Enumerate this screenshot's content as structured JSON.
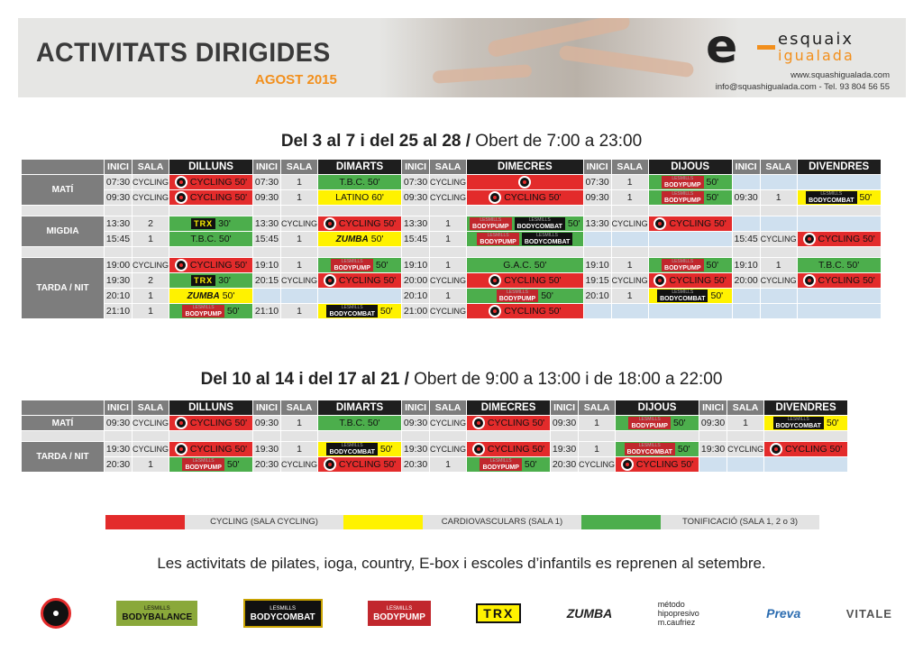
{
  "header": {
    "title": "ACTIVITATS DIRIGIDES",
    "subtitle": "AGOST 2015",
    "brand": "esquaix",
    "brand2": "igualada",
    "web": "www.squashigualada.com",
    "contact": "info@squashigualada.com - Tel. 93 804 56 55"
  },
  "cols": {
    "inici": "INICI",
    "sala": "SALA",
    "days": [
      "DILLUNS",
      "DIMARTS",
      "DIMECRES",
      "DIJOUS",
      "DIVENDRES"
    ]
  },
  "section1": {
    "dates": "Del 3 al 7 i del 25 al 28 /",
    "hours": "Obert de 7:00 a 23:00",
    "periods": {
      "mati": "MATÍ",
      "migdia": "MIGDIA",
      "tarda": "TARDA / NIT"
    },
    "rows": [
      [
        [
          "07:30",
          "CYCLING",
          "CYCLING 50'"
        ],
        [
          "07:30",
          "1",
          "T.B.C. 50'"
        ],
        [
          "07:30",
          "CYCLING",
          ""
        ],
        [
          "07:30",
          "1",
          "50'"
        ],
        [
          "",
          "",
          ""
        ]
      ],
      [
        [
          "09:30",
          "CYCLING",
          "CYCLING 50'"
        ],
        [
          "09:30",
          "1",
          "LATINO 60'"
        ],
        [
          "09:30",
          "CYCLING",
          "CYCLING 50'"
        ],
        [
          "09:30",
          "1",
          "50'"
        ],
        [
          "09:30",
          "1",
          "50'"
        ]
      ],
      [
        [
          "13:30",
          "2",
          "30'"
        ],
        [
          "13:30",
          "CYCLING",
          "CYCLING 50'"
        ],
        [
          "13:30",
          "1",
          "50'"
        ],
        [
          "13:30",
          "CYCLING",
          "CYCLING 50'"
        ],
        [
          "",
          "",
          ""
        ]
      ],
      [
        [
          "15:45",
          "1",
          "T.B.C. 50'"
        ],
        [
          "15:45",
          "1",
          "50'"
        ],
        [
          "15:45",
          "1",
          ""
        ],
        [
          "",
          "",
          ""
        ],
        [
          "15:45",
          "CYCLING",
          "CYCLING 50'"
        ]
      ],
      [
        [
          "19:00",
          "CYCLING",
          "CYCLING 50'"
        ],
        [
          "19:10",
          "1",
          "50'"
        ],
        [
          "19:10",
          "1",
          "G.A.C. 50'"
        ],
        [
          "19:10",
          "1",
          "50'"
        ],
        [
          "19:10",
          "1",
          "T.B.C. 50'"
        ]
      ],
      [
        [
          "19:30",
          "2",
          "30'"
        ],
        [
          "20:15",
          "CYCLING",
          "CYCLING 50'"
        ],
        [
          "20:00",
          "CYCLING",
          "CYCLING 50'"
        ],
        [
          "19:15",
          "CYCLING",
          "CYCLING 50'"
        ],
        [
          "20:00",
          "CYCLING",
          "CYCLING 50'"
        ]
      ],
      [
        [
          "20:10",
          "1",
          "50'"
        ],
        [
          "",
          "",
          ""
        ],
        [
          "20:10",
          "1",
          "50'"
        ],
        [
          "20:10",
          "1",
          "50'"
        ],
        [
          "",
          "",
          ""
        ]
      ],
      [
        [
          "21:10",
          "1",
          "50'"
        ],
        [
          "21:10",
          "1",
          "50'"
        ],
        [
          "21:00",
          "CYCLING",
          "CYCLING 50'"
        ],
        [
          "",
          "",
          ""
        ],
        [
          "",
          "",
          ""
        ]
      ]
    ]
  },
  "section2": {
    "dates": "Del 10 al 14 i del 17 al 21 /",
    "hours": "Obert de 9:00 a 13:00 i de 18:00 a 22:00",
    "periods": {
      "mati": "MATÍ",
      "tarda": "TARDA / NIT"
    },
    "rows": [
      [
        [
          "09:30",
          "CYCLING",
          "CYCLING 50'"
        ],
        [
          "09:30",
          "1",
          "T.B.C. 50'"
        ],
        [
          "09:30",
          "CYCLING",
          "CYCLING 50'"
        ],
        [
          "09:30",
          "1",
          "50'"
        ],
        [
          "09:30",
          "1",
          "50'"
        ]
      ],
      [
        [
          "19:30",
          "CYCLING",
          "CYCLING 50'"
        ],
        [
          "19:30",
          "1",
          "50'"
        ],
        [
          "19:30",
          "CYCLING",
          "CYCLING 50'"
        ],
        [
          "19:30",
          "1",
          "50'"
        ],
        [
          "19:30",
          "CYCLING",
          "CYCLING 50'"
        ]
      ],
      [
        [
          "20:30",
          "1",
          "50'"
        ],
        [
          "20:30",
          "CYCLING",
          "CYCLING 50'"
        ],
        [
          "20:30",
          "1",
          "50'"
        ],
        [
          "20:30",
          "CYCLING",
          "CYCLING 50'"
        ],
        [
          "",
          "",
          ""
        ]
      ]
    ]
  },
  "brands": {
    "lesmills": "LESMILLS",
    "bodypump": "BODYPUMP",
    "bodycombat": "BODYCOMBAT",
    "bodybalance": "BODYBALANCE",
    "trx": "TRX",
    "zumba": "ZUMBA",
    "metodo": "método hipopresivo m.caufriez",
    "preva": "Preva",
    "vitale": "VITALE"
  },
  "legend": {
    "cycling": "CYCLING (SALA CYCLING)",
    "cardio": "CARDIOVASCULARS (SALA 1)",
    "toni": "TONIFICACIÓ (SALA 1, 2 o 3)",
    "colors": {
      "cycling": "#e32b2b",
      "cardio": "#fff200",
      "toni": "#4cae4c"
    }
  },
  "note": "Les activitats de pilates, ioga, country, E-box i escoles d’infantils es reprenen al setembre."
}
